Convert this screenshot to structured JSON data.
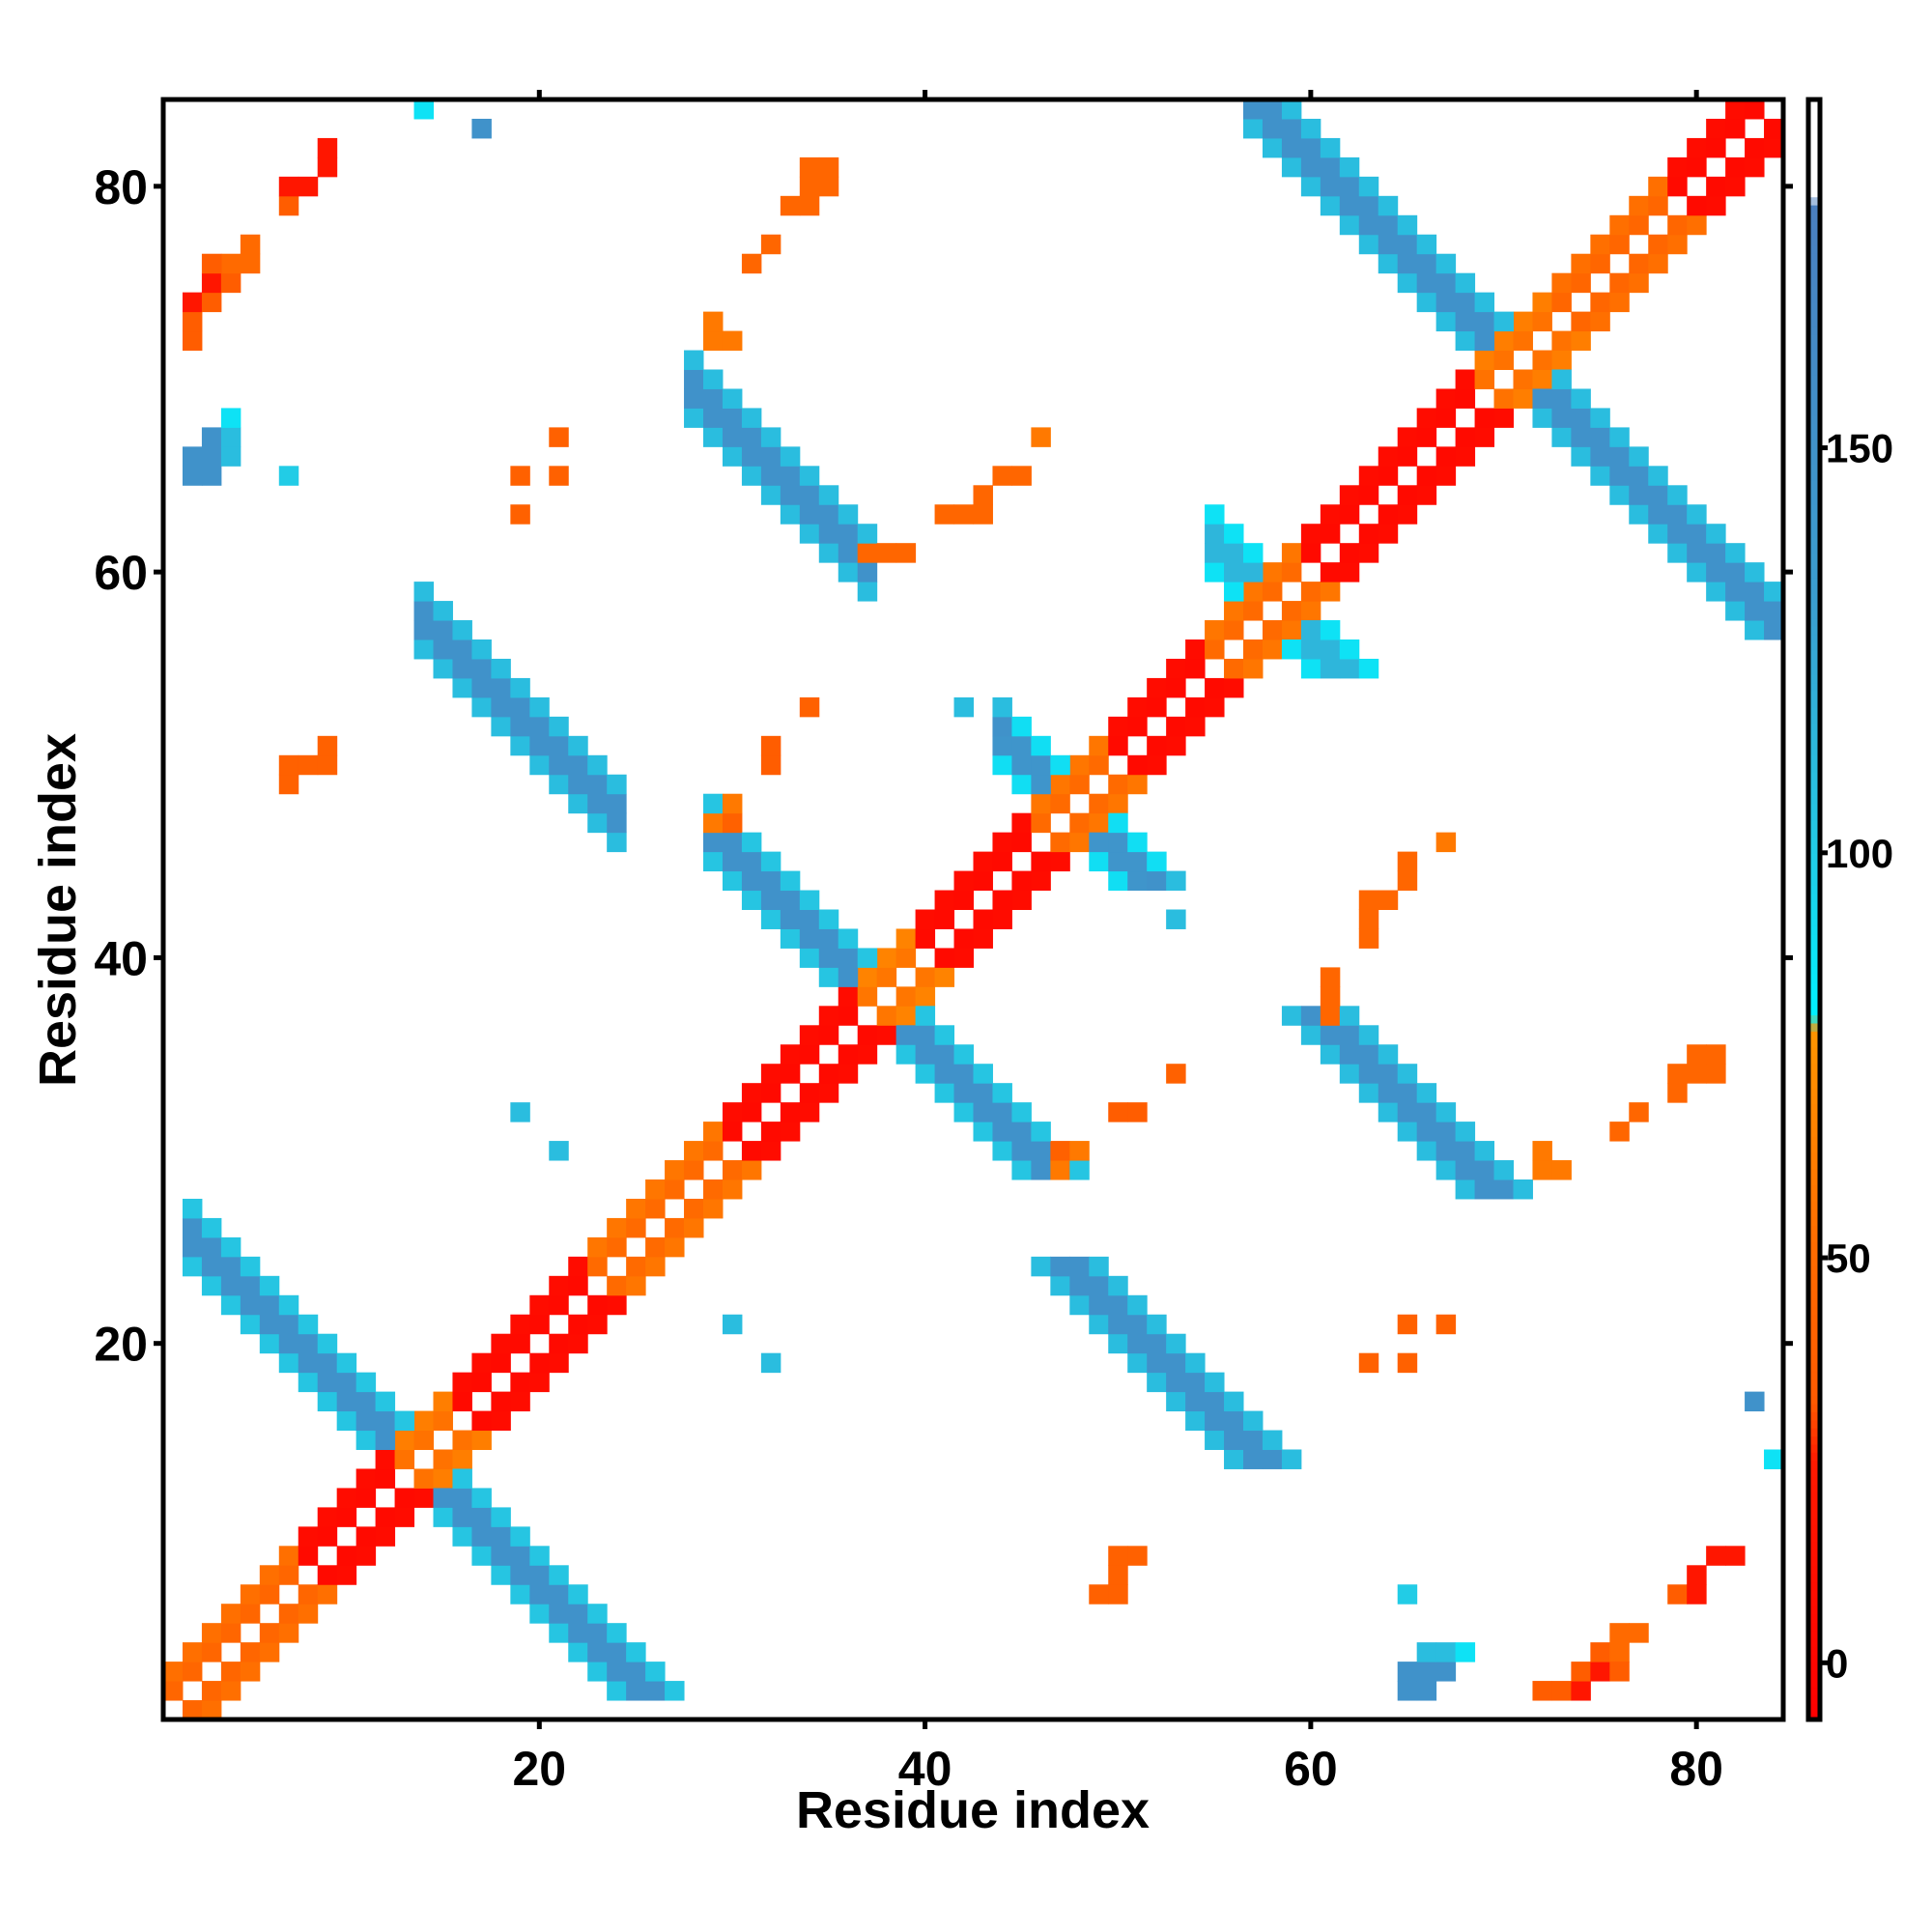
{
  "chart_data": {
    "type": "heatmap",
    "title": "",
    "xlabel": "Residue index",
    "ylabel": "Residue index",
    "xlim": [
      0.5,
      84.5
    ],
    "ylim": [
      0.5,
      84.5
    ],
    "x_ticks": [
      20,
      40,
      60,
      80
    ],
    "y_ticks": [
      20,
      40,
      60,
      80
    ],
    "n_residues": 84,
    "symmetric": true,
    "colorbar": {
      "range": [
        -7,
        193
      ],
      "ticks": [
        0,
        50,
        100,
        150
      ],
      "stops": [
        {
          "value": -7,
          "color": "#ff0000"
        },
        {
          "value": 25,
          "color": "#ff1a00"
        },
        {
          "value": 32,
          "color": "#ff5a00"
        },
        {
          "value": 50,
          "color": "#ff6a00"
        },
        {
          "value": 78,
          "color": "#ff9500"
        },
        {
          "value": 80,
          "color": "#00f0ff"
        },
        {
          "value": 100,
          "color": "#22cce6"
        },
        {
          "value": 130,
          "color": "#3a9fd0"
        },
        {
          "value": 180,
          "color": "#4a7fc0"
        },
        {
          "value": 181,
          "color": "#ffffff"
        },
        {
          "value": 193,
          "color": "#ffffff"
        }
      ]
    },
    "near_diagonal_segments": [
      [
        1,
        8,
        45
      ],
      [
        8,
        13,
        5
      ],
      [
        13,
        16,
        55
      ],
      [
        16,
        23,
        5
      ],
      [
        23,
        30,
        50
      ],
      [
        30,
        37,
        5
      ],
      [
        37,
        40,
        58
      ],
      [
        40,
        46,
        5
      ],
      [
        46,
        50,
        50
      ],
      [
        50,
        55,
        5
      ],
      [
        55,
        60,
        50
      ],
      [
        60,
        69,
        5
      ],
      [
        69,
        73,
        55
      ],
      [
        73,
        79,
        45
      ],
      [
        79,
        84,
        5
      ]
    ],
    "antiparallel_bands": [
      {
        "sum": [
          26,
          29
        ],
        "x": [
          2,
          13
        ],
        "value": 150,
        "edge_value": 105
      },
      {
        "sum": [
          70,
          73
        ],
        "x": [
          14,
          24
        ],
        "value": 150,
        "edge_value": 110
      },
      {
        "sum": [
          96,
          99
        ],
        "x": [
          28,
          37
        ],
        "value": 150,
        "edge_value": 110
      },
      {
        "sum": [
          74,
          77
        ],
        "x": [
          29,
          37
        ],
        "value": 150,
        "edge_value": 105
      },
      {
        "sum": [
          94,
          97
        ],
        "x": [
          44,
          48
        ],
        "value": 145,
        "edge_value": 90
      },
      {
        "sum": [
          115,
          118
        ],
        "x": [
          55,
          59
        ],
        "value": 115,
        "edge_value": 88
      },
      {
        "sum": [
          140,
          143
        ],
        "x": [
          57,
          70
        ],
        "value": 150,
        "edge_value": 110
      }
    ],
    "cells": [
      [
        2,
        65,
        150
      ],
      [
        3,
        65,
        150
      ],
      [
        3,
        66,
        150
      ],
      [
        3,
        67,
        150
      ],
      [
        4,
        66,
        110
      ],
      [
        4,
        67,
        110
      ],
      [
        4,
        68,
        88
      ],
      [
        2,
        66,
        150
      ],
      [
        2,
        72,
        35
      ],
      [
        2,
        73,
        35
      ],
      [
        2,
        74,
        20
      ],
      [
        3,
        74,
        35
      ],
      [
        3,
        75,
        20
      ],
      [
        4,
        75,
        35
      ],
      [
        4,
        76,
        50
      ],
      [
        5,
        76,
        50
      ],
      [
        5,
        77,
        50
      ],
      [
        3,
        76,
        35
      ],
      [
        7,
        79,
        35
      ],
      [
        7,
        80,
        20
      ],
      [
        8,
        80,
        20
      ],
      [
        9,
        81,
        20
      ],
      [
        9,
        82,
        20
      ],
      [
        7,
        49,
        40
      ],
      [
        7,
        50,
        40
      ],
      [
        8,
        50,
        40
      ],
      [
        9,
        50,
        40
      ],
      [
        9,
        51,
        40
      ],
      [
        14,
        84,
        88
      ],
      [
        17,
        83,
        150
      ],
      [
        7,
        65,
        100
      ],
      [
        29,
        72,
        60
      ],
      [
        30,
        72,
        60
      ],
      [
        29,
        73,
        60
      ],
      [
        31,
        76,
        45
      ],
      [
        32,
        77,
        45
      ],
      [
        33,
        79,
        45
      ],
      [
        34,
        79,
        45
      ],
      [
        34,
        80,
        45
      ],
      [
        35,
        80,
        45
      ],
      [
        35,
        81,
        45
      ],
      [
        34,
        81,
        45
      ],
      [
        21,
        67,
        40
      ],
      [
        19,
        65,
        40
      ],
      [
        21,
        65,
        40
      ],
      [
        19,
        63,
        40
      ],
      [
        37,
        61,
        45
      ],
      [
        38,
        61,
        45
      ],
      [
        39,
        61,
        45
      ],
      [
        41,
        63,
        45
      ],
      [
        42,
        63,
        45
      ],
      [
        43,
        63,
        45
      ],
      [
        43,
        64,
        45
      ],
      [
        44,
        65,
        45
      ],
      [
        45,
        65,
        45
      ],
      [
        46,
        67,
        60
      ],
      [
        34,
        53,
        40
      ],
      [
        32,
        50,
        35
      ],
      [
        32,
        51,
        35
      ],
      [
        30,
        48,
        60
      ],
      [
        29,
        47,
        60
      ],
      [
        30,
        47,
        40
      ],
      [
        42,
        53,
        110
      ],
      [
        44,
        53,
        110
      ],
      [
        44,
        52,
        150
      ],
      [
        19,
        32,
        110
      ],
      [
        21,
        30,
        110
      ]
    ]
  }
}
